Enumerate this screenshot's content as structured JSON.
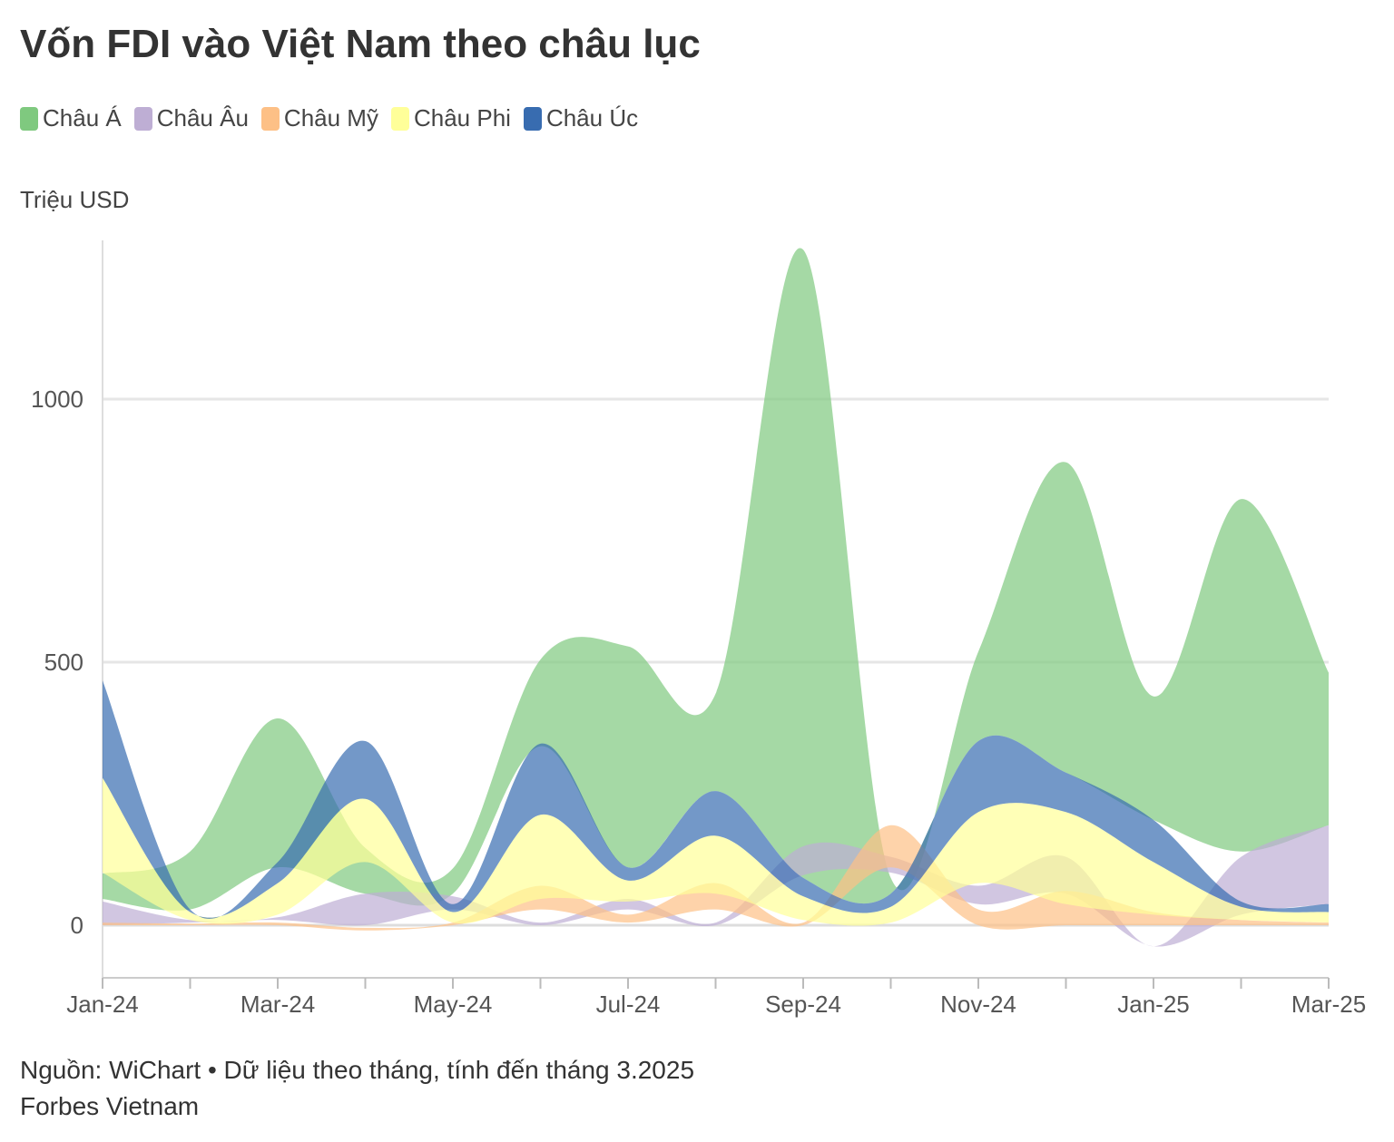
{
  "title": "Vốn FDI vào Việt Nam theo châu lục",
  "footer": {
    "source": "Nguồn: WiChart • Dữ liệu theo tháng, tính đến tháng 3.2025",
    "brand": "Forbes Vietnam"
  },
  "chart_data": {
    "type": "area",
    "title": "Vốn FDI vào Việt Nam theo châu lục",
    "ylabel": "Triệu USD",
    "xlabel": "",
    "ylim": [
      -100,
      1300
    ],
    "yticks": [
      0,
      500,
      1000
    ],
    "grid": true,
    "legend_position": "top-left",
    "x": [
      "Jan-24",
      "Feb-24",
      "Mar-24",
      "Apr-24",
      "May-24",
      "Jun-24",
      "Jul-24",
      "Aug-24",
      "Sep-24",
      "Oct-24",
      "Nov-24",
      "Dec-24",
      "Jan-25",
      "Feb-25",
      "Mar-25"
    ],
    "xtick_labels": [
      "Jan-24",
      "Mar-24",
      "May-24",
      "Jul-24",
      "Sep-24",
      "Nov-24",
      "Jan-25",
      "Mar-25"
    ],
    "series": [
      {
        "name": "Châu Á",
        "color": "#7fc97f",
        "high": [
          98,
          140,
          393,
          147,
          108,
          505,
          530,
          440,
          1284,
          90,
          520,
          880,
          435,
          810,
          480
        ],
        "low": [
          50,
          30,
          110,
          60,
          60,
          340,
          110,
          255,
          90,
          60,
          350,
          290,
          200,
          140,
          190
        ]
      },
      {
        "name": "Châu Âu",
        "color": "#beaed4",
        "high": [
          45,
          10,
          15,
          60,
          55,
          5,
          50,
          5,
          150,
          130,
          75,
          130,
          -40,
          130,
          190
        ],
        "low": [
          0,
          5,
          10,
          0,
          30,
          0,
          30,
          0,
          95,
          100,
          40,
          60,
          -40,
          20,
          40
        ]
      },
      {
        "name": "Châu Mỹ",
        "color": "#fdc086",
        "high": [
          5,
          3,
          5,
          -5,
          5,
          75,
          20,
          80,
          5,
          190,
          30,
          65,
          25,
          10,
          5
        ],
        "low": [
          0,
          0,
          0,
          -10,
          0,
          30,
          5,
          30,
          0,
          110,
          0,
          0,
          0,
          0,
          0
        ]
      },
      {
        "name": "Châu Phi",
        "color": "#ffff99",
        "high": [
          280,
          25,
          80,
          240,
          25,
          210,
          85,
          170,
          55,
          35,
          215,
          215,
          120,
          35,
          25
        ],
        "low": [
          100,
          10,
          20,
          120,
          5,
          50,
          45,
          60,
          10,
          5,
          80,
          40,
          20,
          10,
          5
        ]
      },
      {
        "name": "Châu Úc",
        "color": "#386cb0",
        "high": [
          465,
          30,
          120,
          350,
          40,
          345,
          110,
          255,
          90,
          60,
          350,
          290,
          200,
          45,
          40
        ],
        "low": [
          280,
          25,
          80,
          240,
          25,
          210,
          85,
          170,
          55,
          35,
          215,
          215,
          120,
          35,
          25
        ]
      }
    ]
  }
}
